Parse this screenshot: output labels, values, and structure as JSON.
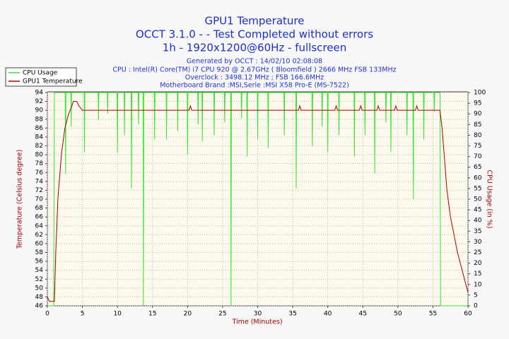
{
  "chart_data": {
    "type": "line",
    "title": "GPU1 Temperature",
    "subtitle": [
      "OCCT 3.1.0 -  - Test Completed without errors",
      "1h - 1920x1200@60Hz - fullscreen"
    ],
    "info": [
      "Generated by OCCT : 14/02/10 02:08:08",
      "CPU : Intel(R) Core(TM) i7 CPU 920 @ 2.67GHz ( Bloomfield ) 2666 MHz FSB 133MHz",
      "Overclock : 3498.12 MHz ; FSB 166.6MHz",
      "Motherboard Brand :MSI,Serie :MSI X58 Pro-E (MS-7522)"
    ],
    "xlabel": "Time (Minutes)",
    "ylabel": "Temperature (Celsius degree)",
    "y2label": "CPU Usage (in %)",
    "xlim": [
      0,
      60
    ],
    "xticks": [
      0,
      5,
      10,
      15,
      20,
      25,
      30,
      35,
      40,
      45,
      50,
      55,
      60
    ],
    "ylim": [
      46,
      94
    ],
    "yticks": [
      46,
      48,
      50,
      52,
      54,
      56,
      58,
      60,
      62,
      64,
      66,
      68,
      70,
      72,
      74,
      76,
      78,
      80,
      82,
      84,
      86,
      88,
      90,
      92,
      94
    ],
    "y2lim": [
      0,
      100
    ],
    "y2ticks": [
      0,
      5,
      10,
      15,
      20,
      25,
      30,
      35,
      40,
      45,
      50,
      55,
      60,
      65,
      70,
      75,
      80,
      85,
      90,
      95,
      100
    ],
    "grid": true,
    "legend": "top-left",
    "series": [
      {
        "name": "CPU Usage",
        "color": "#33e633",
        "axis": "y2",
        "x": [
          0,
          0.9,
          1.0,
          2.55,
          2.6,
          2.65,
          3.35,
          3.4,
          3.45,
          5.25,
          5.3,
          5.35,
          7.25,
          7.3,
          7.35,
          8.55,
          8.6,
          8.65,
          9.95,
          10,
          10.05,
          10.95,
          11,
          11.05,
          11.95,
          12,
          12.05,
          12.95,
          13,
          13.05,
          13.65,
          13.7,
          13.75,
          15.25,
          15.3,
          15.35,
          16.95,
          17,
          17.05,
          18.55,
          18.6,
          18.65,
          19.95,
          20,
          20.05,
          21.45,
          21.5,
          21.55,
          22.05,
          22.1,
          22.15,
          23.75,
          23.8,
          23.85,
          25.25,
          25.3,
          25.35,
          26.15,
          26.2,
          26.25,
          27.65,
          27.7,
          27.75,
          28.45,
          28.5,
          28.55,
          29.95,
          30,
          30.05,
          31.45,
          31.5,
          31.55,
          33.75,
          33.8,
          33.85,
          35.45,
          35.5,
          35.55,
          37.75,
          37.8,
          37.85,
          39.15,
          39.2,
          39.25,
          39.95,
          40,
          40.05,
          41.55,
          41.6,
          41.65,
          43.75,
          43.8,
          43.85,
          45.25,
          45.3,
          45.35,
          46.65,
          46.7,
          46.75,
          48.25,
          48.3,
          48.35,
          48.95,
          49,
          49.05,
          51.25,
          51.3,
          51.35,
          52.15,
          52.2,
          52.25,
          53.65,
          53.7,
          53.75,
          55.15,
          55.2,
          55.25,
          56.0,
          56.1,
          60
        ],
        "values": [
          0,
          0,
          100,
          100,
          62,
          100,
          100,
          84,
          100,
          100,
          72,
          100,
          100,
          87,
          100,
          100,
          90,
          100,
          100,
          72,
          100,
          100,
          80,
          100,
          100,
          55,
          100,
          100,
          85,
          100,
          100,
          0,
          100,
          100,
          78,
          100,
          100,
          78,
          100,
          100,
          82,
          100,
          100,
          71,
          100,
          100,
          85,
          100,
          100,
          77,
          100,
          100,
          80,
          100,
          100,
          86,
          100,
          100,
          0,
          100,
          100,
          88,
          100,
          100,
          70,
          100,
          100,
          78,
          100,
          100,
          74,
          100,
          100,
          80,
          100,
          100,
          55,
          100,
          100,
          75,
          100,
          100,
          84,
          100,
          100,
          72,
          100,
          100,
          80,
          100,
          100,
          70,
          100,
          100,
          80,
          100,
          100,
          62,
          100,
          100,
          86,
          100,
          100,
          72,
          100,
          100,
          80,
          100,
          100,
          50,
          100,
          100,
          78,
          100,
          100,
          91,
          100,
          100,
          0,
          0
        ]
      },
      {
        "name": "GPU1 Temperature",
        "color": "#aa0000",
        "axis": "y",
        "x": [
          0,
          0.3,
          1.0,
          1.2,
          1.5,
          2,
          2.5,
          3,
          3.5,
          3.7,
          4.2,
          4.5,
          5,
          20.2,
          20.4,
          20.6,
          35.8,
          36,
          36.2,
          41,
          41.2,
          41.4,
          44.5,
          44.7,
          44.9,
          47,
          47.2,
          47.4,
          49.5,
          49.7,
          49.9,
          52.5,
          52.7,
          52.9,
          56,
          56.3,
          56.7,
          57,
          57.5,
          58,
          58.5,
          59,
          59.5,
          60
        ],
        "values": [
          48,
          47,
          47,
          58,
          70,
          80,
          86,
          89,
          91,
          92,
          92,
          91,
          90,
          90,
          91,
          90,
          90,
          91,
          90,
          90,
          91,
          90,
          90,
          91,
          90,
          90,
          91,
          90,
          90,
          91,
          90,
          90,
          91,
          90,
          90,
          86,
          78,
          72,
          66,
          62,
          58,
          55,
          52,
          49
        ]
      }
    ]
  }
}
